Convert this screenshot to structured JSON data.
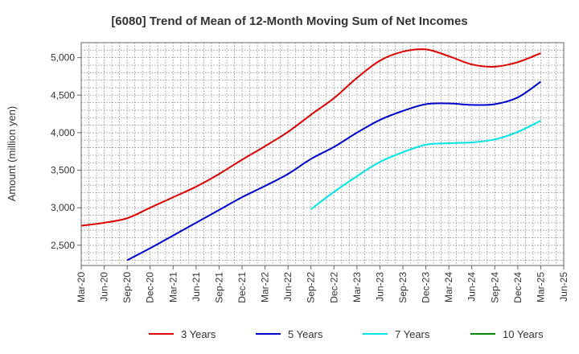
{
  "chart_data": {
    "type": "line",
    "title": "[6080]  Trend of Mean of 12-Month Moving Sum of Net Incomes",
    "ylabel": "Amount (million yen)",
    "xlabel": "",
    "ylim": [
      2230,
      5200
    ],
    "yticks": [
      2500,
      3000,
      3500,
      4000,
      4500,
      5000
    ],
    "ytick_labels": [
      "2,500",
      "3,000",
      "3,500",
      "4,000",
      "4,500",
      "5,000"
    ],
    "xticks": [
      "Mar-20",
      "Jun-20",
      "Sep-20",
      "Dec-20",
      "Mar-21",
      "Jun-21",
      "Sep-21",
      "Dec-21",
      "Mar-22",
      "Jun-22",
      "Sep-22",
      "Dec-22",
      "Mar-23",
      "Jun-23",
      "Sep-23",
      "Dec-23",
      "Mar-24",
      "Jun-24",
      "Sep-24",
      "Dec-24",
      "Mar-25",
      "Jun-25"
    ],
    "grid": true,
    "legend_position": "bottom",
    "series": [
      {
        "name": "3 Years",
        "color": "#dd0000",
        "points": [
          [
            "Mar-20",
            2760
          ],
          [
            "Jun-20",
            2800
          ],
          [
            "Sep-20",
            2860
          ],
          [
            "Dec-20",
            3000
          ],
          [
            "Mar-21",
            3140
          ],
          [
            "Jun-21",
            3280
          ],
          [
            "Sep-21",
            3450
          ],
          [
            "Dec-21",
            3640
          ],
          [
            "Mar-22",
            3820
          ],
          [
            "Jun-22",
            4010
          ],
          [
            "Sep-22",
            4240
          ],
          [
            "Dec-22",
            4460
          ],
          [
            "Mar-23",
            4730
          ],
          [
            "Jun-23",
            4960
          ],
          [
            "Sep-23",
            5080
          ],
          [
            "Dec-23",
            5110
          ],
          [
            "Mar-24",
            5020
          ],
          [
            "Jun-24",
            4910
          ],
          [
            "Sep-24",
            4880
          ],
          [
            "Dec-24",
            4940
          ],
          [
            "Mar-25",
            5060
          ]
        ]
      },
      {
        "name": "5 Years",
        "color": "#0000cc",
        "points": [
          [
            "Sep-20",
            2300
          ],
          [
            "Dec-20",
            2460
          ],
          [
            "Mar-21",
            2630
          ],
          [
            "Jun-21",
            2800
          ],
          [
            "Sep-21",
            2970
          ],
          [
            "Dec-21",
            3140
          ],
          [
            "Mar-22",
            3290
          ],
          [
            "Jun-22",
            3450
          ],
          [
            "Sep-22",
            3650
          ],
          [
            "Dec-22",
            3810
          ],
          [
            "Mar-23",
            4000
          ],
          [
            "Jun-23",
            4170
          ],
          [
            "Sep-23",
            4290
          ],
          [
            "Dec-23",
            4380
          ],
          [
            "Mar-24",
            4390
          ],
          [
            "Jun-24",
            4370
          ],
          [
            "Sep-24",
            4380
          ],
          [
            "Dec-24",
            4470
          ],
          [
            "Mar-25",
            4680
          ]
        ]
      },
      {
        "name": "7 Years",
        "color": "#00e5e5",
        "points": [
          [
            "Sep-22",
            2980
          ],
          [
            "Dec-22",
            3210
          ],
          [
            "Mar-23",
            3420
          ],
          [
            "Jun-23",
            3610
          ],
          [
            "Sep-23",
            3740
          ],
          [
            "Dec-23",
            3840
          ],
          [
            "Mar-24",
            3860
          ],
          [
            "Jun-24",
            3870
          ],
          [
            "Sep-24",
            3910
          ],
          [
            "Dec-24",
            4010
          ],
          [
            "Mar-25",
            4160
          ]
        ]
      },
      {
        "name": "10 Years",
        "color": "#008800",
        "points": []
      }
    ]
  }
}
